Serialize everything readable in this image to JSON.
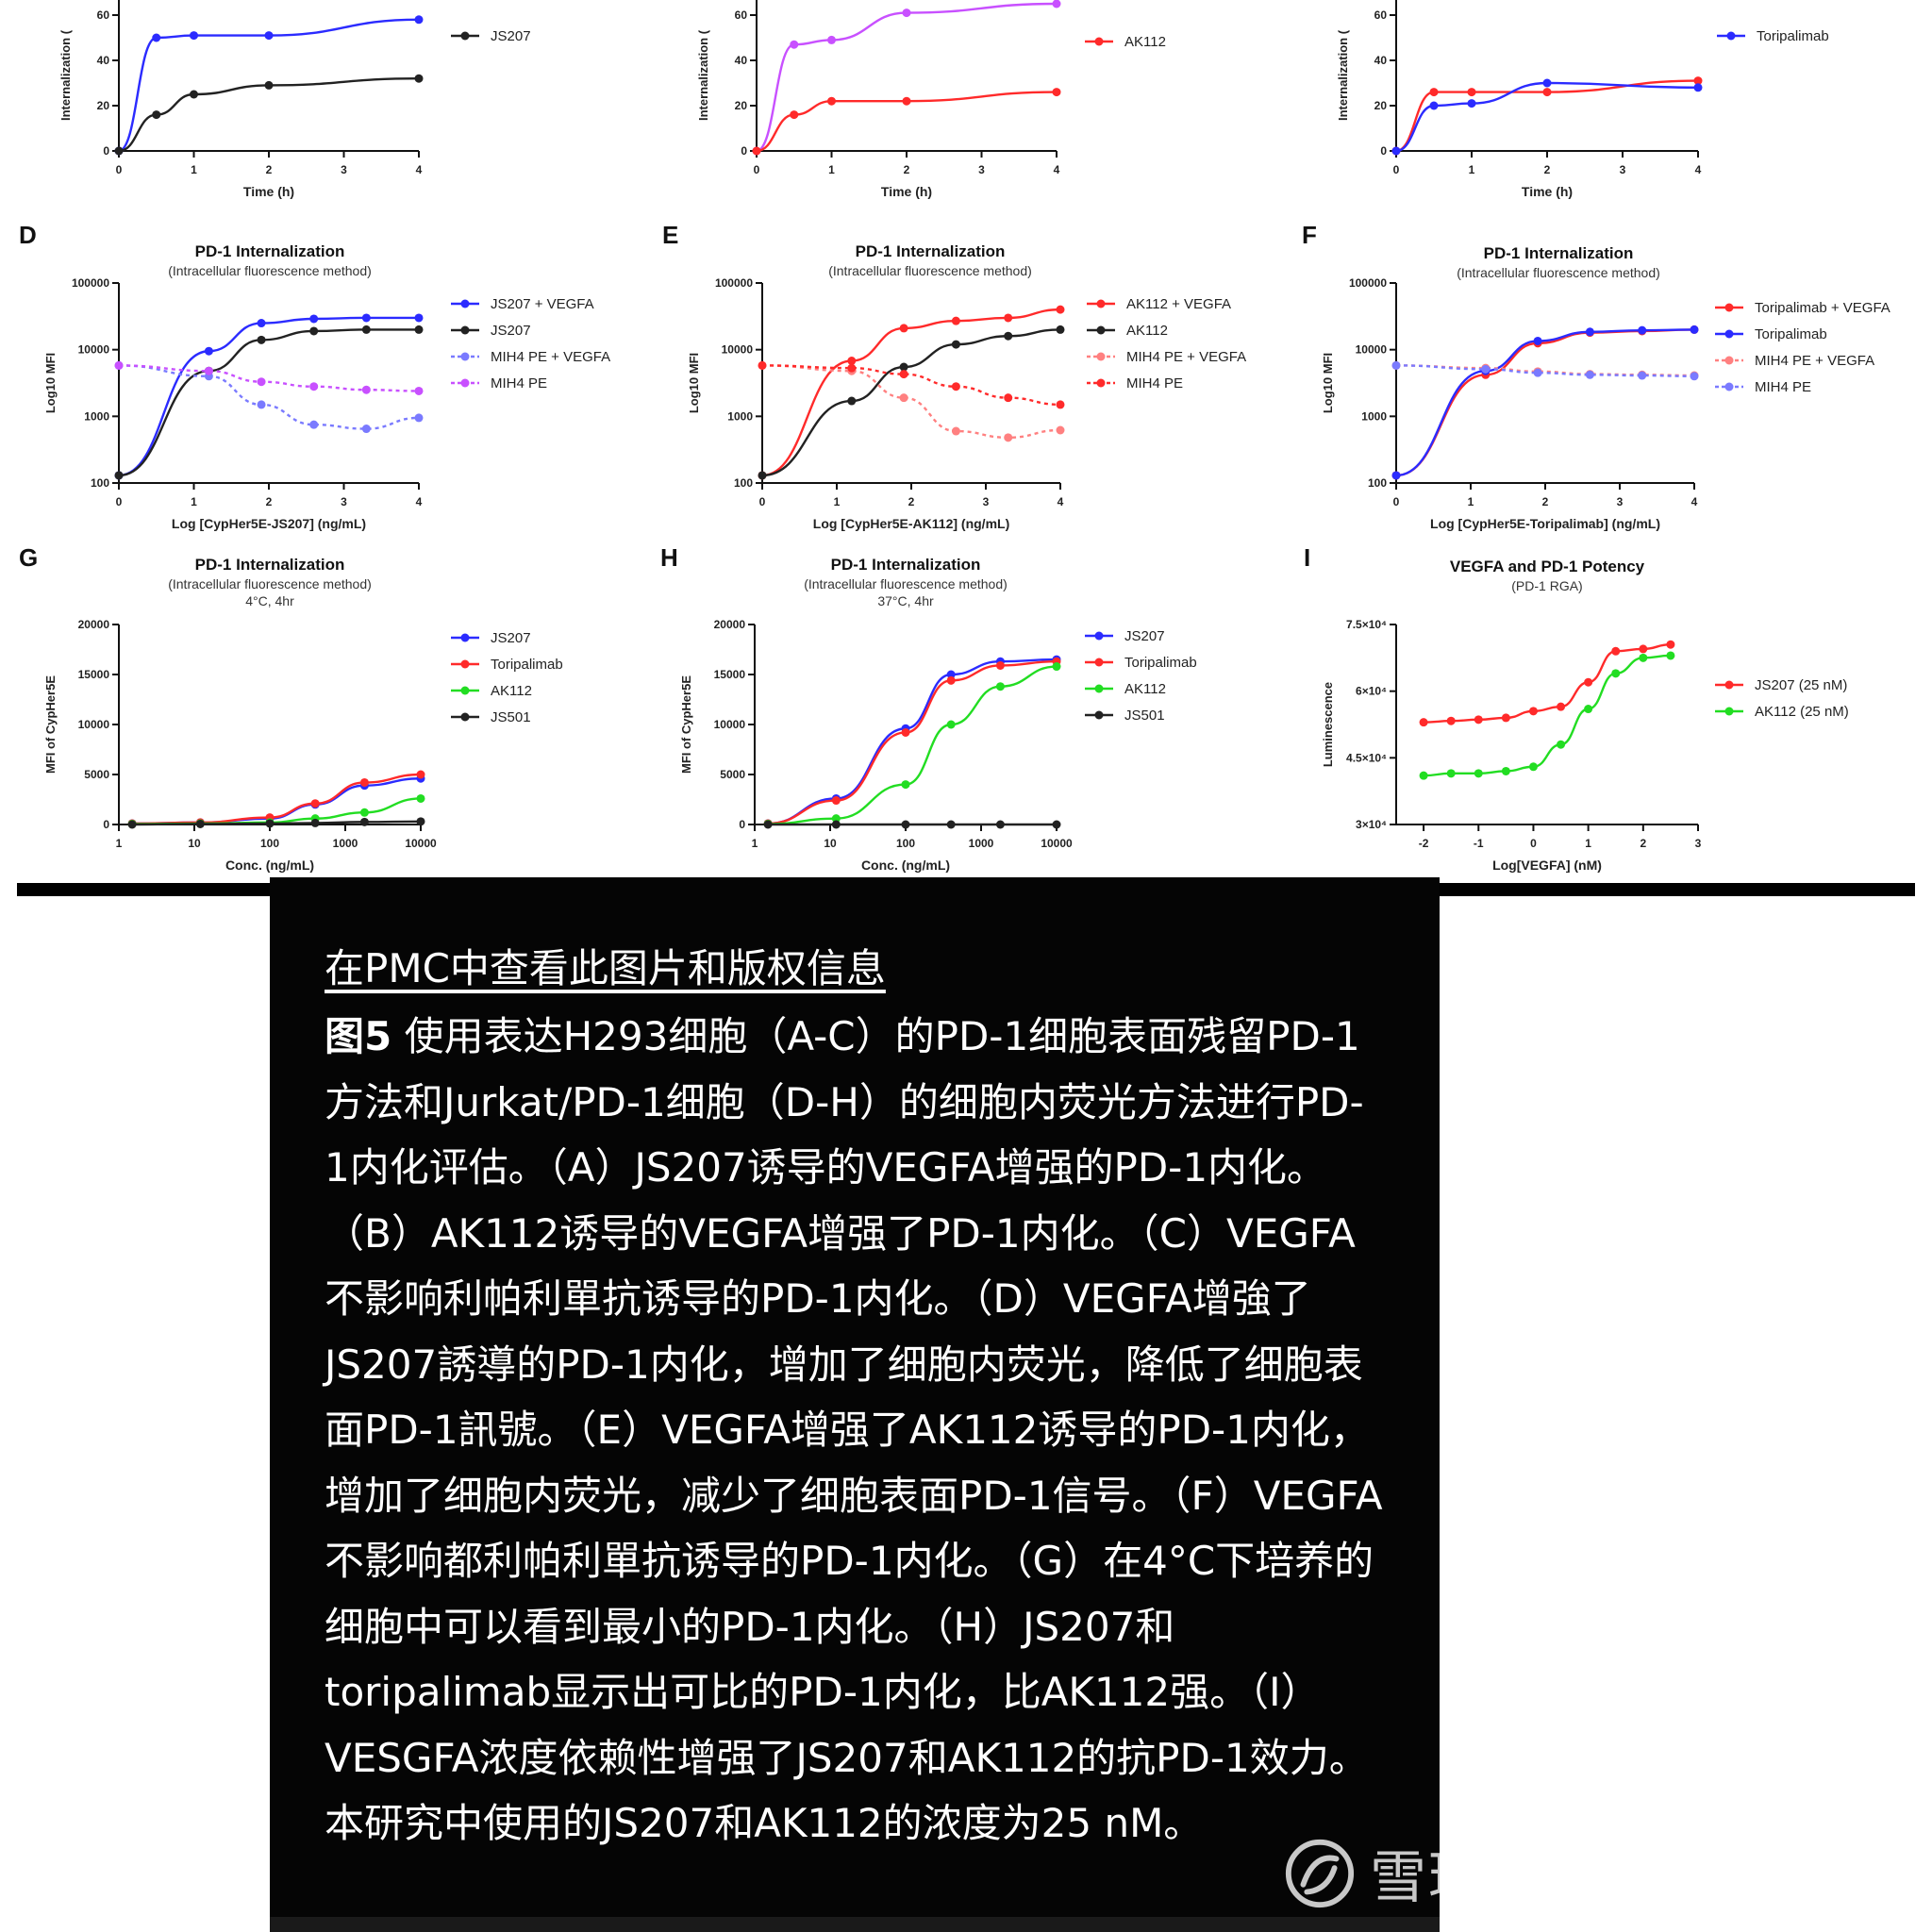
{
  "caption": {
    "link": "在PMC中查看此图片和版权信息",
    "figure_label": "图5",
    "text": " 使用表达H293细胞（A-C）的PD-1细胞表面残留PD-1方法和Jurkat/PD-1细胞（D-H）的细胞内荧光方法进行PD-1内化评估。（A）JS207诱导的VEGFA增强的PD-1内化。（B）AK112诱导的VEGFA增强了PD-1内化。（C）VEGFA不影响利帕利單抗诱导的PD-1内化。（D）VEGFA增強了JS207誘導的PD-1内化，增加了细胞内荧光，降低了细胞表面PD-1訊號。（E）VEGFA增强了AK112诱导的PD-1内化，增加了细胞内荧光，减少了细胞表面PD-1信号。（F）VEGFA不影响都利帕利單抗诱导的PD-1内化。（G）在4°C下培养的细胞中可以看到最小的PD-1内化。（H）JS207和toripalimab显示出可比的PD-1内化，比AK112强。（I）VESGFA浓度依赖性增强了JS207和AK112的抗PD-1效力。本研究中使用的JS207和AK112的浓度为25 nM。"
  },
  "watermark": {
    "text": "雪球：夏虫不可冰语",
    "icon": "xueqiu-logo-icon"
  },
  "colors": {
    "blue": "#2b2bff",
    "black": "#222222",
    "light_blue": "#7a7aff",
    "purple": "#c850ff",
    "red": "#ff2a2a",
    "pink": "#ff8080",
    "green": "#22dd22"
  },
  "chart_data": [
    {
      "id": "A",
      "type": "line",
      "panel_label": "",
      "title": "",
      "subtitle": "",
      "xlabel": "Time (h)",
      "ylabel": "Internalization (",
      "xscale": "linear",
      "xlim": [
        0,
        4
      ],
      "ylim": [
        0,
        75
      ],
      "xticks": [
        0,
        1,
        2,
        3,
        4
      ],
      "xtick_labels": [
        "0",
        "1",
        "2",
        "3",
        "4"
      ],
      "yticks": [
        0,
        20,
        40,
        60
      ],
      "ytick_labels": [
        "0",
        "20",
        "40",
        "60"
      ],
      "series": [
        {
          "name": "",
          "color": "#2b2bff",
          "dash": false,
          "x": [
            0,
            0.5,
            1,
            2,
            4
          ],
          "y": [
            0,
            50,
            51,
            51,
            58
          ]
        },
        {
          "name": "JS207",
          "color": "#222222",
          "dash": false,
          "x": [
            0,
            0.5,
            1,
            2,
            4
          ],
          "y": [
            0,
            16,
            25,
            29,
            32
          ]
        }
      ]
    },
    {
      "id": "B",
      "type": "line",
      "panel_label": "",
      "title": "",
      "subtitle": "",
      "xlabel": "Time (h)",
      "ylabel": "Internalization (",
      "xscale": "linear",
      "xlim": [
        0,
        4
      ],
      "ylim": [
        0,
        75
      ],
      "xticks": [
        0,
        1,
        2,
        3,
        4
      ],
      "xtick_labels": [
        "0",
        "1",
        "2",
        "3",
        "4"
      ],
      "yticks": [
        0,
        20,
        40,
        60
      ],
      "ytick_labels": [
        "0",
        "20",
        "40",
        "60"
      ],
      "series": [
        {
          "name": "",
          "color": "#c850ff",
          "dash": false,
          "x": [
            0,
            0.5,
            1,
            2,
            4
          ],
          "y": [
            0,
            47,
            49,
            61,
            65
          ]
        },
        {
          "name": "AK112",
          "color": "#ff2a2a",
          "dash": false,
          "x": [
            0,
            0.5,
            1,
            2,
            4
          ],
          "y": [
            0,
            16,
            22,
            22,
            26
          ]
        }
      ]
    },
    {
      "id": "C",
      "type": "line",
      "panel_label": "",
      "title": "",
      "subtitle": "",
      "xlabel": "Time (h)",
      "ylabel": "Internalization (",
      "xscale": "linear",
      "xlim": [
        0,
        4
      ],
      "ylim": [
        0,
        75
      ],
      "xticks": [
        0,
        1,
        2,
        3,
        4
      ],
      "xtick_labels": [
        "0",
        "1",
        "2",
        "3",
        "4"
      ],
      "yticks": [
        0,
        20,
        40,
        60
      ],
      "ytick_labels": [
        "0",
        "20",
        "40",
        "60"
      ],
      "series": [
        {
          "name": "",
          "color": "#ff2a2a",
          "dash": false,
          "x": [
            0,
            0.5,
            1,
            2,
            4
          ],
          "y": [
            0,
            26,
            26,
            26,
            31
          ]
        },
        {
          "name": "Toripalimab",
          "color": "#2b2bff",
          "dash": false,
          "x": [
            0,
            0.5,
            1,
            2,
            4
          ],
          "y": [
            0,
            20,
            21,
            30,
            28
          ]
        }
      ]
    },
    {
      "id": "D",
      "type": "line",
      "panel_label": "D",
      "title": "PD-1 Internalization",
      "subtitle": "(Intracellular fluorescence method)",
      "xlabel": "Log [CypHer5E-JS207] (ng/mL)",
      "ylabel": "Log10 MFI",
      "xscale": "linear",
      "yscale": "log",
      "xlim": [
        0,
        4
      ],
      "ylim": [
        100,
        100000
      ],
      "xticks": [
        0,
        1,
        2,
        3,
        4
      ],
      "xtick_labels": [
        "0",
        "1",
        "2",
        "3",
        "4"
      ],
      "yticks": [
        100,
        1000,
        10000,
        100000
      ],
      "ytick_labels": [
        "100",
        "1000",
        "10000",
        "100000"
      ],
      "series": [
        {
          "name": "JS207 + VEGFA",
          "color": "#2b2bff",
          "dash": false,
          "x": [
            0,
            1.2,
            1.9,
            2.6,
            3.3,
            4
          ],
          "y": [
            130,
            9500,
            25000,
            29000,
            30000,
            30000
          ]
        },
        {
          "name": "JS207",
          "color": "#222222",
          "dash": false,
          "x": [
            0,
            1.2,
            1.9,
            2.6,
            3.3,
            4
          ],
          "y": [
            130,
            4800,
            14000,
            19000,
            20000,
            20000
          ]
        },
        {
          "name": "MIH4 PE + VEGFA",
          "color": "#7a7aff",
          "dash": true,
          "x": [
            0,
            1.2,
            1.9,
            2.6,
            3.3,
            4
          ],
          "y": [
            5800,
            4000,
            1500,
            750,
            650,
            950
          ]
        },
        {
          "name": "MIH4 PE",
          "color": "#c850ff",
          "dash": true,
          "x": [
            0,
            1.2,
            1.9,
            2.6,
            3.3,
            4
          ],
          "y": [
            5800,
            4800,
            3300,
            2800,
            2500,
            2400
          ]
        }
      ]
    },
    {
      "id": "E",
      "type": "line",
      "panel_label": "E",
      "title": "PD-1 Internalization",
      "subtitle": "(Intracellular fluorescence method)",
      "xlabel": "Log [CypHer5E-AK112] (ng/mL)",
      "ylabel": "Log10 MFI",
      "xscale": "linear",
      "yscale": "log",
      "xlim": [
        0,
        4
      ],
      "ylim": [
        100,
        100000
      ],
      "xticks": [
        0,
        1,
        2,
        3,
        4
      ],
      "xtick_labels": [
        "0",
        "1",
        "2",
        "3",
        "4"
      ],
      "yticks": [
        100,
        1000,
        10000,
        100000
      ],
      "ytick_labels": [
        "100",
        "1000",
        "10000",
        "100000"
      ],
      "series": [
        {
          "name": "AK112 + VEGFA",
          "color": "#ff2a2a",
          "dash": false,
          "x": [
            0,
            1.2,
            1.9,
            2.6,
            3.3,
            4
          ],
          "y": [
            130,
            6800,
            21000,
            27000,
            30000,
            40000
          ]
        },
        {
          "name": "AK112",
          "color": "#222222",
          "dash": false,
          "x": [
            0,
            1.2,
            1.9,
            2.6,
            3.3,
            4
          ],
          "y": [
            130,
            1700,
            5500,
            12000,
            16000,
            20000
          ]
        },
        {
          "name": "MIH4 PE + VEGFA",
          "color": "#ff8080",
          "dash": true,
          "x": [
            0,
            1.2,
            1.9,
            2.6,
            3.3,
            4
          ],
          "y": [
            5800,
            4800,
            1900,
            600,
            480,
            620
          ]
        },
        {
          "name": "MIH4 PE",
          "color": "#ff2a2a",
          "dash": true,
          "x": [
            0,
            1.2,
            1.9,
            2.6,
            3.3,
            4
          ],
          "y": [
            5800,
            5300,
            4300,
            2800,
            1900,
            1500
          ]
        }
      ]
    },
    {
      "id": "F",
      "type": "line",
      "panel_label": "F",
      "title": "PD-1 Internalization",
      "subtitle": "(Intracellular fluorescence method)",
      "xlabel": "Log [CypHer5E-Toripalimab] (ng/mL)",
      "ylabel": "Log10 MFI",
      "xscale": "linear",
      "yscale": "log",
      "xlim": [
        0,
        4
      ],
      "ylim": [
        100,
        100000
      ],
      "xticks": [
        0,
        1,
        2,
        3,
        4
      ],
      "xtick_labels": [
        "0",
        "1",
        "2",
        "3",
        "4"
      ],
      "yticks": [
        100,
        1000,
        10000,
        100000
      ],
      "ytick_labels": [
        "100",
        "1000",
        "10000",
        "100000"
      ],
      "series": [
        {
          "name": "Toripalimab + VEGFA",
          "color": "#ff2a2a",
          "dash": false,
          "x": [
            0,
            1.2,
            1.9,
            2.6,
            3.3,
            4
          ],
          "y": [
            130,
            4200,
            12500,
            18000,
            19000,
            20000
          ]
        },
        {
          "name": "Toripalimab",
          "color": "#2b2bff",
          "dash": false,
          "x": [
            0,
            1.2,
            1.9,
            2.6,
            3.3,
            4
          ],
          "y": [
            130,
            4800,
            13500,
            18500,
            19500,
            20000
          ]
        },
        {
          "name": "MIH4 PE + VEGFA",
          "color": "#ff8080",
          "dash": true,
          "x": [
            0,
            1.2,
            1.9,
            2.6,
            3.3,
            4
          ],
          "y": [
            5800,
            5300,
            4700,
            4300,
            4200,
            4100
          ]
        },
        {
          "name": "MIH4 PE",
          "color": "#7a7aff",
          "dash": true,
          "x": [
            0,
            1.2,
            1.9,
            2.6,
            3.3,
            4
          ],
          "y": [
            5800,
            5100,
            4500,
            4200,
            4100,
            4000
          ]
        }
      ]
    },
    {
      "id": "G",
      "type": "line",
      "panel_label": "G",
      "title": "PD-1 Internalization",
      "subtitle": "(Intracellular fluorescence method)",
      "subtitle2": "4°C, 4hr",
      "xlabel": "Conc. (ng/mL)",
      "ylabel": "MFI of CypHer5E",
      "xscale": "log",
      "xlim": [
        1,
        10000
      ],
      "ylim": [
        0,
        20000
      ],
      "xticks": [
        1,
        10,
        100,
        1000,
        10000
      ],
      "xtick_labels": [
        "1",
        "10",
        "100",
        "1000",
        "10000"
      ],
      "yticks": [
        0,
        5000,
        10000,
        15000,
        20000
      ],
      "ytick_labels": [
        "0",
        "5000",
        "10000",
        "15000",
        "20000"
      ],
      "series": [
        {
          "name": "JS207",
          "color": "#2b2bff",
          "dash": false,
          "x": [
            1.5,
            12,
            100,
            400,
            1800,
            10000
          ],
          "y": [
            100,
            200,
            600,
            2000,
            3900,
            4600
          ]
        },
        {
          "name": "Toripalimab",
          "color": "#ff2a2a",
          "dash": false,
          "x": [
            1.5,
            12,
            100,
            400,
            1800,
            10000
          ],
          "y": [
            100,
            200,
            700,
            2100,
            4200,
            5000
          ]
        },
        {
          "name": "AK112",
          "color": "#22dd22",
          "dash": false,
          "x": [
            1.5,
            12,
            100,
            400,
            1800,
            10000
          ],
          "y": [
            50,
            100,
            200,
            600,
            1200,
            2600
          ]
        },
        {
          "name": "JS501",
          "color": "#222222",
          "dash": false,
          "x": [
            1.5,
            12,
            100,
            400,
            1800,
            10000
          ],
          "y": [
            0,
            50,
            100,
            150,
            250,
            300
          ]
        }
      ]
    },
    {
      "id": "H",
      "type": "line",
      "panel_label": "H",
      "title": "PD-1 Internalization",
      "subtitle": "(Intracellular fluorescence method)",
      "subtitle2": "37°C, 4hr",
      "xlabel": "Conc. (ng/mL)",
      "ylabel": "MFI of CypHer5E",
      "xscale": "log",
      "xlim": [
        1,
        10000
      ],
      "ylim": [
        0,
        20000
      ],
      "xticks": [
        1,
        10,
        100,
        1000,
        10000
      ],
      "xtick_labels": [
        "1",
        "10",
        "100",
        "1000",
        "10000"
      ],
      "yticks": [
        0,
        5000,
        10000,
        15000,
        20000
      ],
      "ytick_labels": [
        "0",
        "5000",
        "10000",
        "15000",
        "20000"
      ],
      "series": [
        {
          "name": "JS207",
          "color": "#2b2bff",
          "dash": false,
          "x": [
            1.5,
            12,
            100,
            400,
            1800,
            10000
          ],
          "y": [
            100,
            2600,
            9600,
            15000,
            16300,
            16500
          ]
        },
        {
          "name": "Toripalimab",
          "color": "#ff2a2a",
          "dash": false,
          "x": [
            1.5,
            12,
            100,
            400,
            1800,
            10000
          ],
          "y": [
            100,
            2400,
            9200,
            14400,
            15900,
            16300
          ]
        },
        {
          "name": "AK112",
          "color": "#22dd22",
          "dash": false,
          "x": [
            1.5,
            12,
            100,
            400,
            1800,
            10000
          ],
          "y": [
            50,
            600,
            4000,
            10000,
            13800,
            15800
          ]
        },
        {
          "name": "JS501",
          "color": "#222222",
          "dash": false,
          "x": [
            1.5,
            12,
            100,
            400,
            1800,
            10000
          ],
          "y": [
            0,
            0,
            0,
            0,
            0,
            0
          ]
        }
      ]
    },
    {
      "id": "I",
      "type": "line",
      "panel_label": "I",
      "title": "VEGFA and PD-1 Potency",
      "subtitle": "(PD-1 RGA)",
      "subtitle2": "",
      "xlabel": "Log[VEGFA] (nM)",
      "ylabel": "Luminescence",
      "xscale": "linear",
      "xlim": [
        -2.5,
        3
      ],
      "ylim": [
        30000,
        75000
      ],
      "xticks": [
        -2,
        -1,
        0,
        1,
        2,
        3
      ],
      "xtick_labels": [
        "-2",
        "-1",
        "0",
        "1",
        "2",
        "3"
      ],
      "yticks": [
        30000,
        45000,
        60000,
        75000
      ],
      "ytick_labels": [
        "3×10⁴",
        "4.5×10⁴",
        "6×10⁴",
        "7.5×10⁴"
      ],
      "series": [
        {
          "name": "JS207 (25 nM)",
          "color": "#ff2a2a",
          "dash": false,
          "x": [
            -2,
            -1.5,
            -1,
            -0.5,
            0,
            0.5,
            1,
            1.5,
            2,
            2.5
          ],
          "y": [
            53000,
            53300,
            53600,
            54000,
            55500,
            56500,
            62000,
            69000,
            69500,
            70500
          ]
        },
        {
          "name": "AK112 (25 nM)",
          "color": "#22dd22",
          "dash": false,
          "x": [
            -2,
            -1.5,
            -1,
            -0.5,
            0,
            0.5,
            1,
            1.5,
            2,
            2.5
          ],
          "y": [
            41000,
            41500,
            41500,
            42000,
            43000,
            48000,
            56000,
            64000,
            67500,
            68000
          ]
        }
      ]
    }
  ]
}
